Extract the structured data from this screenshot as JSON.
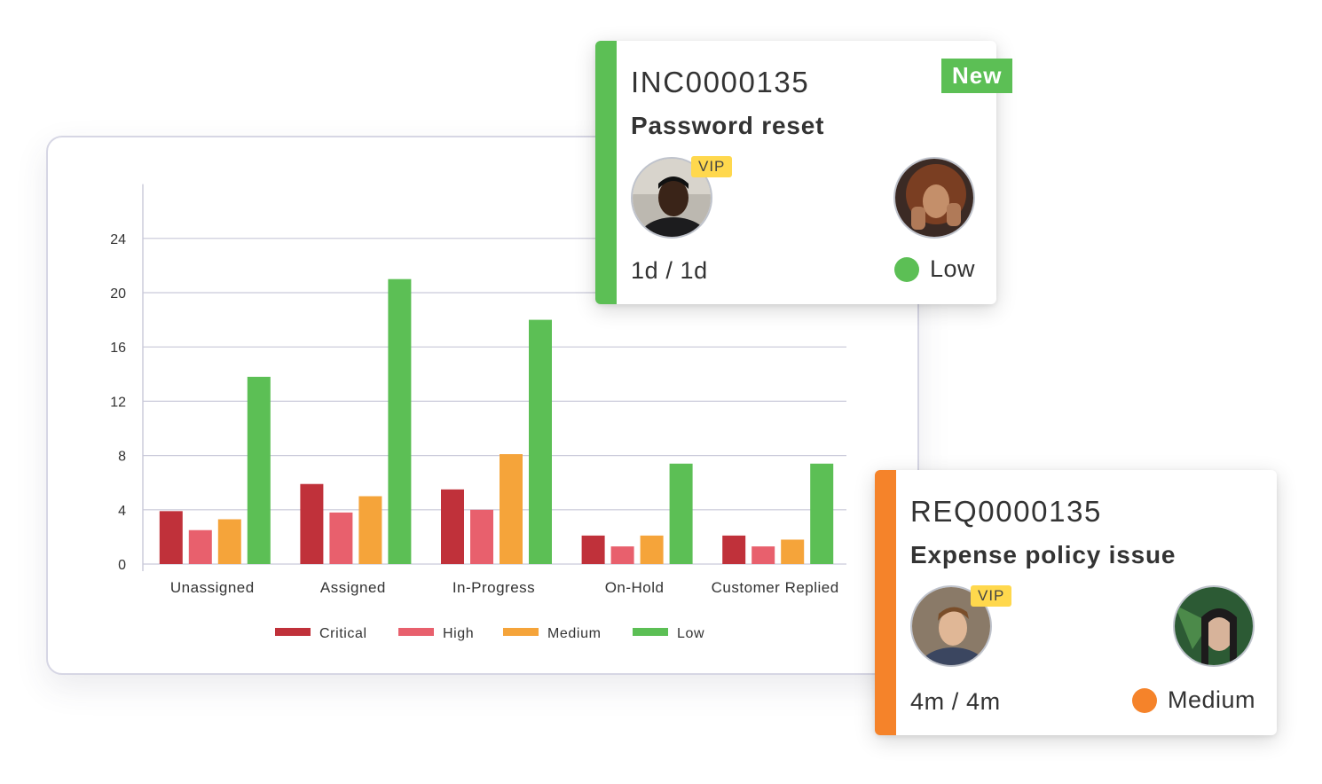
{
  "chart_data": {
    "type": "bar",
    "categories": [
      "Unassigned",
      "Assigned",
      "In-Progress",
      "On-Hold",
      "Customer Replied"
    ],
    "series": [
      {
        "name": "Critical",
        "color": "#c0313a",
        "values": [
          3.9,
          5.9,
          5.5,
          2.1,
          2.1
        ]
      },
      {
        "name": "High",
        "color": "#e8606d",
        "values": [
          2.5,
          3.8,
          4.0,
          1.3,
          1.3
        ]
      },
      {
        "name": "Medium",
        "color": "#f5a43a",
        "values": [
          3.3,
          5.0,
          8.1,
          2.1,
          1.8
        ]
      },
      {
        "name": "Low",
        "color": "#5cbf55",
        "values": [
          13.8,
          21.0,
          18.0,
          7.4,
          7.4
        ]
      }
    ],
    "yticks": [
      "0",
      "4",
      "8",
      "12",
      "16",
      "20",
      "24"
    ],
    "ylim": [
      0,
      28
    ],
    "grid": true,
    "legend": "bottom"
  },
  "cards": [
    {
      "id": "INC0000135",
      "title": "Password reset",
      "badge": "New",
      "vip": "VIP",
      "time": "1d / 1d",
      "priority": "Low",
      "accent": "#5cbf55",
      "priority_color": "#5cbf55"
    },
    {
      "id": "REQ0000135",
      "title": "Expense policy issue",
      "vip": "VIP",
      "time": "4m / 4m",
      "priority": "Medium",
      "accent": "#f5832a",
      "priority_color": "#f5832a"
    }
  ]
}
